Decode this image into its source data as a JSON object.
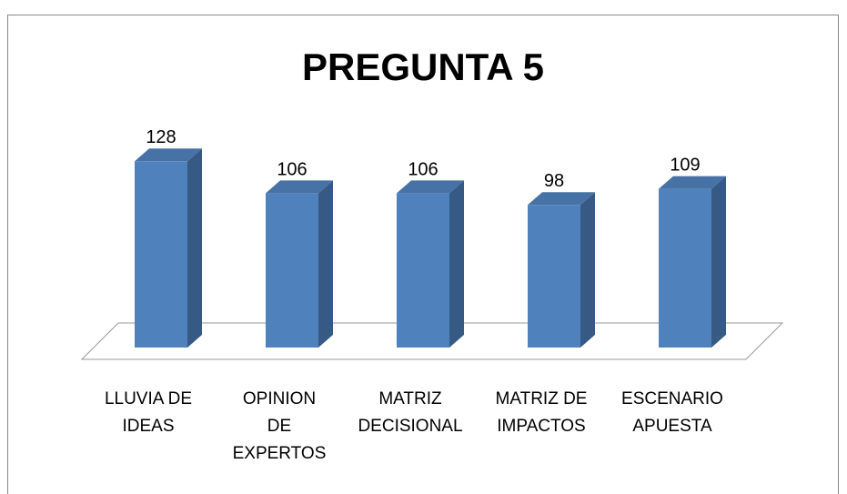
{
  "chart_data": {
    "type": "bar3d",
    "title": "PREGUNTA 5",
    "categories": [
      "LLUVIA DE\nIDEAS",
      "OPINION\nDE\nEXPERTOS",
      "MATRIZ\nDECISIONAL",
      "MATRIZ DE\nIMPACTOS",
      "ESCENARIO\nAPUESTA"
    ],
    "values": [
      128,
      106,
      106,
      98,
      109
    ],
    "color": "#4f81bd"
  }
}
